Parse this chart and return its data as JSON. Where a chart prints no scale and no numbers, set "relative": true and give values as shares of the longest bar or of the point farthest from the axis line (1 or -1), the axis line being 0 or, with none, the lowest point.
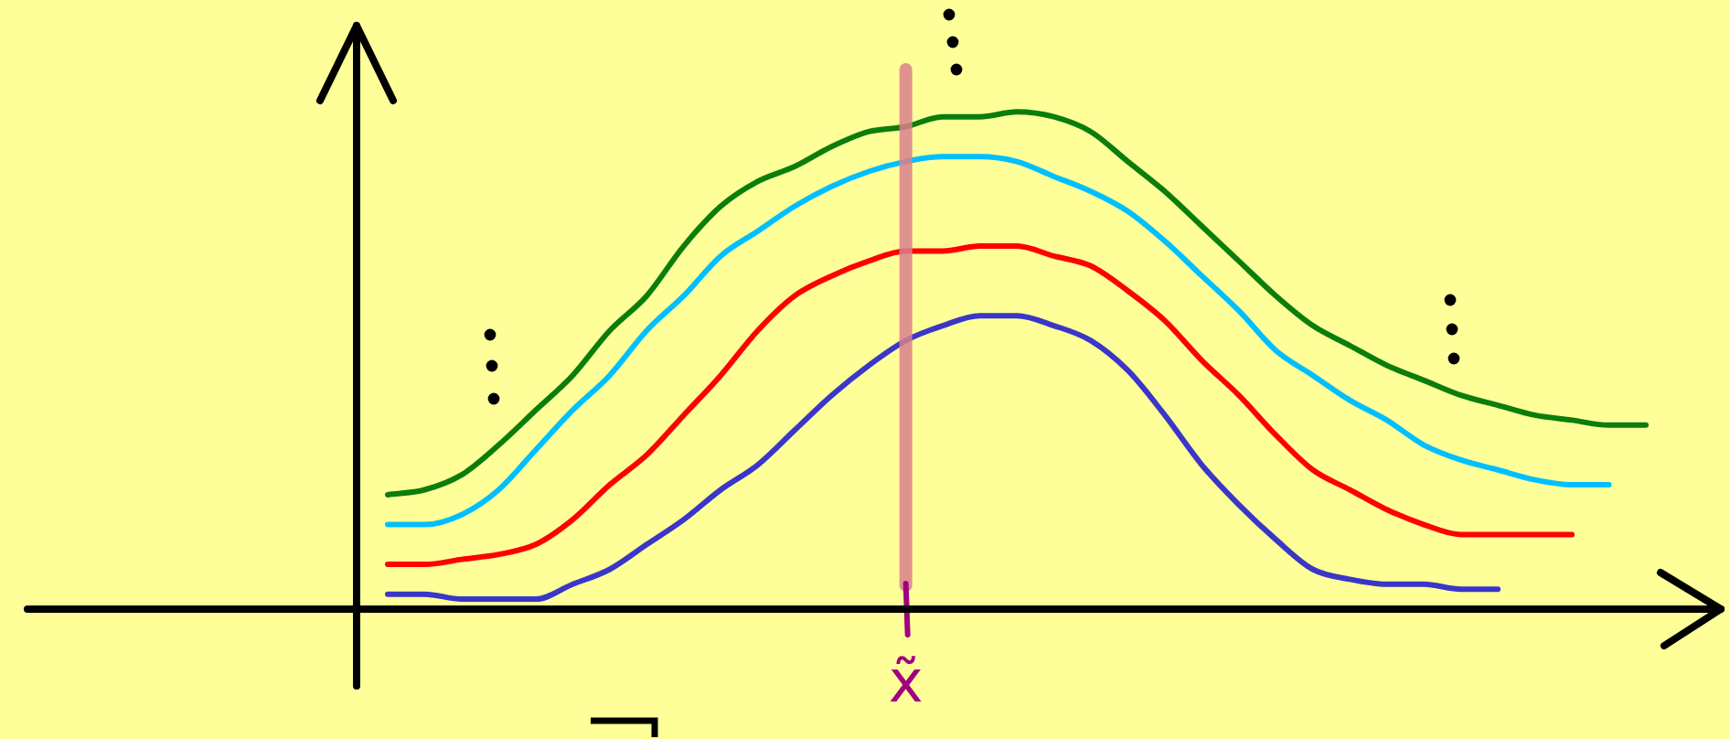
{
  "chart_data": {
    "type": "line",
    "relative": true,
    "marker": "none",
    "categories": [
      null,
      null,
      null,
      null,
      null,
      null,
      null,
      null,
      null,
      null,
      null,
      null,
      null,
      null,
      null,
      null,
      null,
      null,
      null,
      null,
      null,
      null,
      null,
      null,
      null,
      null,
      null,
      null,
      null,
      null,
      null,
      null,
      null,
      null,
      null
    ],
    "series": [
      {
        "color": "#3a36c8",
        "values": [
          0.03,
          0.03,
          0.02,
          0.02,
          0.02,
          0.05,
          0.08,
          0.13,
          0.18,
          0.24,
          0.29,
          0.36,
          0.43,
          0.49,
          0.54,
          0.57,
          0.59,
          0.59,
          0.57,
          0.54,
          0.48,
          0.39,
          0.29,
          0.21,
          0.14,
          0.08,
          0.06,
          0.05,
          0.05,
          0.04,
          0.04,
          null,
          null,
          null,
          null
        ]
      },
      {
        "color": "#ff0000",
        "values": [
          0.09,
          0.09,
          0.1,
          0.11,
          0.13,
          0.18,
          0.25,
          0.31,
          0.39,
          0.47,
          0.56,
          0.63,
          0.67,
          0.7,
          0.72,
          0.72,
          0.73,
          0.73,
          0.71,
          0.69,
          0.64,
          0.58,
          0.5,
          0.43,
          0.35,
          0.28,
          0.24,
          0.2,
          0.17,
          0.15,
          0.15,
          0.15,
          0.15,
          null,
          null
        ]
      },
      {
        "color": "#00bfff",
        "values": [
          0.17,
          0.17,
          0.19,
          0.24,
          0.32,
          0.4,
          0.47,
          0.56,
          0.63,
          0.71,
          0.76,
          0.81,
          0.85,
          0.88,
          0.9,
          0.91,
          0.91,
          0.9,
          0.87,
          0.84,
          0.8,
          0.74,
          0.67,
          0.6,
          0.52,
          0.47,
          0.42,
          0.38,
          0.33,
          0.3,
          0.28,
          0.26,
          0.25,
          0.25,
          null
        ]
      },
      {
        "color": "#0b7d0b",
        "values": [
          0.23,
          0.24,
          0.27,
          0.33,
          0.4,
          0.47,
          0.56,
          0.63,
          0.73,
          0.81,
          0.86,
          0.89,
          0.93,
          0.96,
          0.97,
          0.99,
          0.99,
          1,
          0.99,
          0.96,
          0.9,
          0.84,
          0.77,
          0.7,
          0.63,
          0.57,
          0.53,
          0.49,
          0.46,
          0.43,
          0.41,
          0.39,
          0.38,
          0.37,
          0.37
        ]
      }
    ],
    "annotations": [
      "x̃"
    ]
  }
}
